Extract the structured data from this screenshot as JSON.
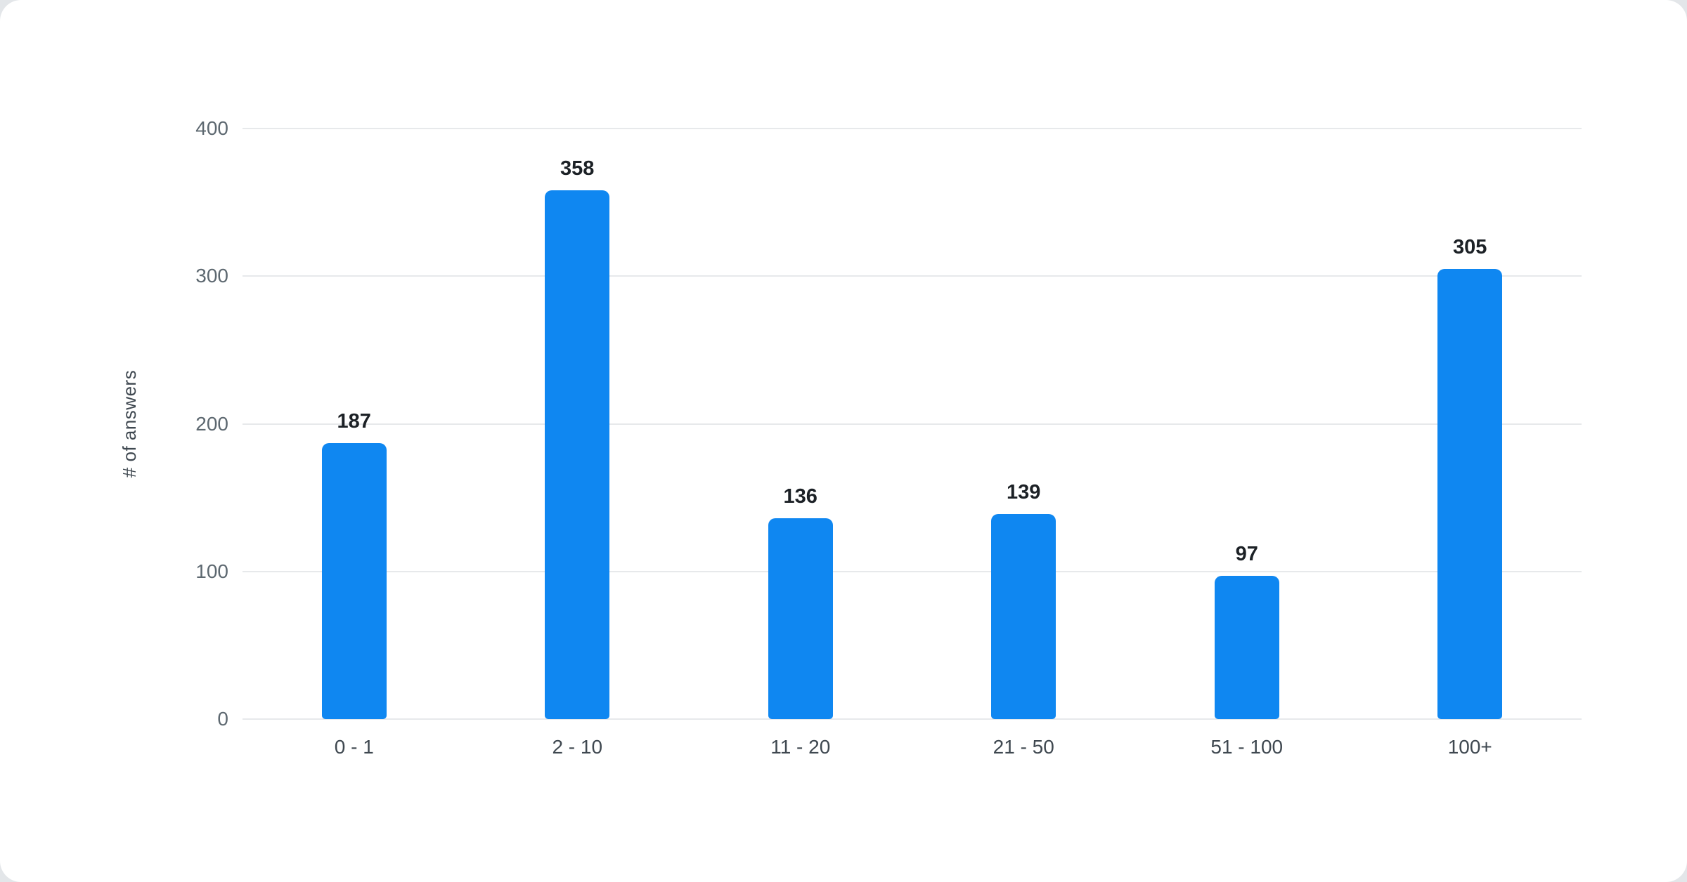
{
  "chart_data": {
    "type": "bar",
    "categories": [
      "0 - 1",
      "2 - 10",
      "11 - 20",
      "21 - 50",
      "51 - 100",
      "100+"
    ],
    "values": [
      187,
      358,
      136,
      139,
      97,
      305
    ],
    "title": "",
    "xlabel": "",
    "ylabel": "# of answers",
    "ylim": [
      0,
      400
    ],
    "yticks": [
      0,
      100,
      200,
      300,
      400
    ],
    "bar_color": "#0f87f1",
    "grid": true,
    "legend": "none",
    "background_color": "#ffffff"
  }
}
